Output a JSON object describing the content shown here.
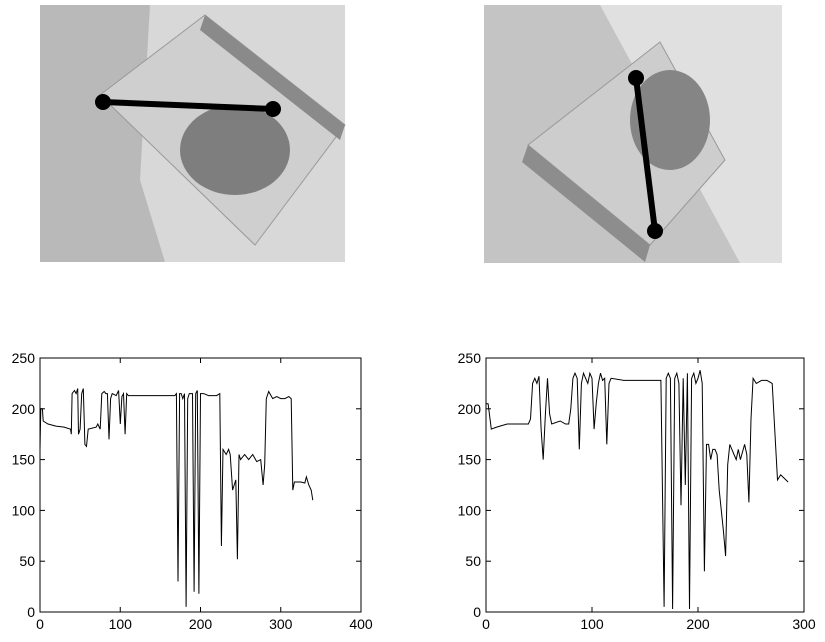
{
  "chart_data": [
    {
      "type": "line",
      "color": "#000000",
      "xlim": [
        0,
        400
      ],
      "ylim": [
        0,
        250
      ],
      "xticks": [
        0,
        100,
        200,
        300,
        400
      ],
      "yticks": [
        0,
        50,
        100,
        150,
        200,
        250
      ],
      "x": [
        0,
        1,
        3,
        4,
        10,
        20,
        30,
        38,
        39,
        40,
        43,
        45,
        47,
        48,
        50,
        52,
        54,
        56,
        58,
        60,
        70,
        72,
        75,
        77,
        80,
        82,
        84,
        86,
        88,
        90,
        95,
        98,
        100,
        102,
        104,
        106,
        108,
        110,
        130,
        150,
        168,
        170,
        172,
        174,
        176,
        178,
        180,
        182,
        184,
        186,
        190,
        192,
        194,
        196,
        198,
        200,
        204,
        210,
        220,
        224,
        226,
        228,
        232,
        235,
        237,
        240,
        244,
        246,
        248,
        250,
        255,
        260,
        265,
        270,
        275,
        278,
        280,
        282,
        285,
        290,
        295,
        300,
        305,
        310,
        313,
        315,
        317,
        325,
        330,
        332,
        335,
        338,
        340
      ],
      "values": [
        160,
        200,
        200,
        188,
        185,
        183,
        182,
        180,
        175,
        215,
        218,
        215,
        220,
        175,
        180,
        215,
        220,
        165,
        163,
        180,
        182,
        185,
        180,
        215,
        217,
        215,
        215,
        170,
        210,
        215,
        213,
        218,
        185,
        212,
        215,
        175,
        215,
        213,
        213,
        213,
        213,
        215,
        30,
        215,
        215,
        210,
        215,
        5,
        210,
        215,
        215,
        20,
        215,
        218,
        18,
        215,
        215,
        213,
        213,
        215,
        65,
        160,
        155,
        160,
        155,
        120,
        130,
        52,
        155,
        150,
        155,
        150,
        155,
        148,
        150,
        125,
        145,
        210,
        217,
        210,
        212,
        210,
        210,
        212,
        210,
        120,
        128,
        128,
        127,
        133,
        125,
        120,
        110
      ]
    },
    {
      "type": "line",
      "color": "#000000",
      "xlim": [
        0,
        300
      ],
      "ylim": [
        0,
        250
      ],
      "xticks": [
        0,
        100,
        200,
        300
      ],
      "yticks": [
        0,
        50,
        100,
        150,
        200,
        250
      ],
      "x": [
        0,
        2,
        5,
        10,
        20,
        30,
        40,
        42,
        44,
        46,
        48,
        50,
        52,
        54,
        56,
        58,
        60,
        62,
        70,
        75,
        78,
        80,
        82,
        84,
        86,
        88,
        90,
        92,
        94,
        96,
        98,
        100,
        102,
        104,
        106,
        108,
        110,
        112,
        114,
        116,
        118,
        130,
        150,
        165,
        168,
        170,
        172,
        174,
        176,
        178,
        180,
        182,
        184,
        186,
        188,
        190,
        192,
        194,
        196,
        198,
        200,
        202,
        204,
        206,
        208,
        210,
        212,
        214,
        216,
        218,
        220,
        224,
        226,
        228,
        230,
        232,
        234,
        236,
        238,
        240,
        244,
        246,
        248,
        250,
        252,
        255,
        260,
        265,
        270,
        275,
        278,
        280,
        285
      ],
      "values": [
        205,
        205,
        180,
        182,
        185,
        185,
        185,
        190,
        225,
        230,
        225,
        232,
        180,
        150,
        195,
        230,
        195,
        185,
        188,
        185,
        185,
        200,
        230,
        235,
        230,
        160,
        225,
        235,
        230,
        225,
        235,
        230,
        180,
        205,
        225,
        235,
        228,
        230,
        165,
        225,
        230,
        228,
        228,
        228,
        5,
        230,
        235,
        230,
        3,
        230,
        235,
        225,
        105,
        230,
        125,
        235,
        3,
        230,
        235,
        225,
        230,
        238,
        225,
        40,
        165,
        165,
        150,
        160,
        160,
        155,
        120,
        80,
        55,
        145,
        165,
        160,
        155,
        150,
        160,
        150,
        165,
        155,
        108,
        190,
        230,
        225,
        228,
        228,
        225,
        130,
        135,
        133,
        128
      ]
    }
  ]
}
